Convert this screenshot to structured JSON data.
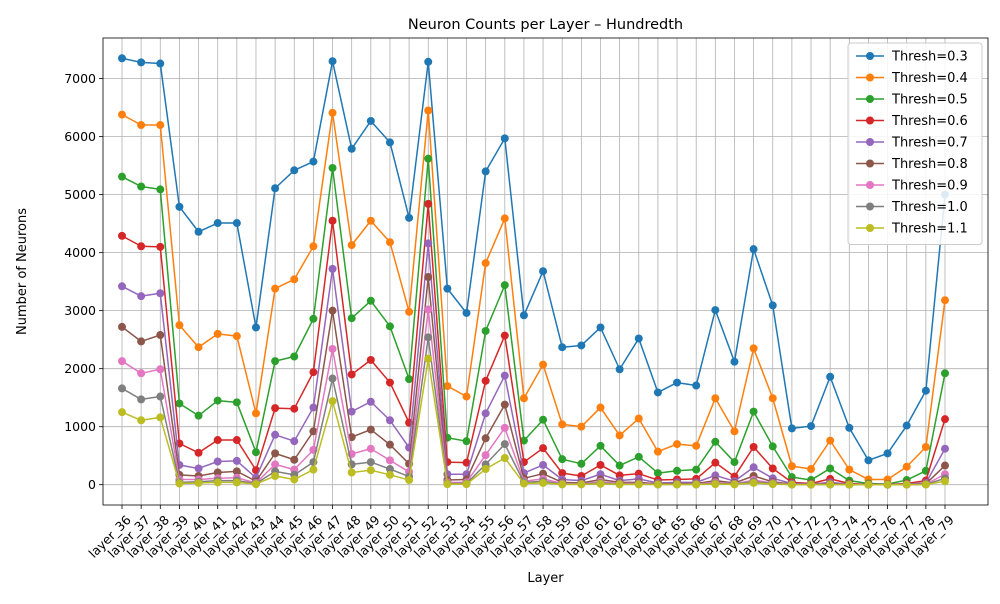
{
  "chart_data": {
    "type": "line",
    "title": "Neuron Counts per Layer – Hundredth",
    "xlabel": "Layer",
    "ylabel": "Number of Neurons",
    "ylim": [
      -350,
      7700
    ],
    "yticks": [
      0,
      1000,
      2000,
      3000,
      4000,
      5000,
      6000,
      7000
    ],
    "grid": true,
    "legend_position": "top-right",
    "categories": [
      "layer_36",
      "layer_37",
      "layer_38",
      "layer_39",
      "layer_40",
      "layer_41",
      "layer_42",
      "layer_43",
      "layer_44",
      "layer_45",
      "layer_46",
      "layer_47",
      "layer_48",
      "layer_49",
      "layer_50",
      "layer_51",
      "layer_52",
      "layer_53",
      "layer_54",
      "layer_55",
      "layer_56",
      "layer_57",
      "layer_58",
      "layer_59",
      "layer_60",
      "layer_61",
      "layer_62",
      "layer_63",
      "layer_64",
      "layer_65",
      "layer_66",
      "layer_67",
      "layer_68",
      "layer_69",
      "layer_70",
      "layer_71",
      "layer_72",
      "layer_73",
      "layer_74",
      "layer_75",
      "layer_76",
      "layer_77",
      "layer_78",
      "layer_79"
    ],
    "series": [
      {
        "name": "Thresh=0.3",
        "color": "#1f77b4",
        "values": [
          7350,
          7280,
          7260,
          4790,
          4360,
          4510,
          4510,
          2710,
          5110,
          5420,
          5570,
          7300,
          5790,
          6270,
          5900,
          4600,
          7290,
          3380,
          2960,
          5400,
          5970,
          2920,
          3680,
          2370,
          2400,
          2710,
          1990,
          2520,
          1590,
          1760,
          1710,
          3010,
          2120,
          4060,
          3090,
          970,
          1010,
          1860,
          980,
          420,
          540,
          1020,
          1620,
          5000
        ]
      },
      {
        "name": "Thresh=0.4",
        "color": "#ff7f0e",
        "values": [
          6380,
          6200,
          6200,
          2750,
          2370,
          2600,
          2560,
          1230,
          3380,
          3540,
          4110,
          6410,
          4130,
          4550,
          4180,
          2980,
          6450,
          1700,
          1520,
          3820,
          4590,
          1490,
          2070,
          1040,
          1000,
          1330,
          850,
          1140,
          570,
          700,
          670,
          1490,
          920,
          2350,
          1490,
          320,
          270,
          760,
          260,
          90,
          90,
          310,
          650,
          3180
        ]
      },
      {
        "name": "Thresh=0.5",
        "color": "#2ca02c",
        "values": [
          5310,
          5140,
          5090,
          1400,
          1190,
          1450,
          1420,
          560,
          2130,
          2210,
          2860,
          5460,
          2870,
          3170,
          2730,
          1820,
          5620,
          810,
          750,
          2650,
          3440,
          760,
          1120,
          440,
          360,
          670,
          330,
          480,
          200,
          240,
          260,
          740,
          390,
          1260,
          660,
          130,
          80,
          280,
          70,
          20,
          10,
          80,
          240,
          1920
        ]
      },
      {
        "name": "Thresh=0.6",
        "color": "#d62728",
        "values": [
          4290,
          4110,
          4100,
          710,
          550,
          770,
          770,
          250,
          1320,
          1310,
          1940,
          4550,
          1900,
          2150,
          1760,
          1070,
          4840,
          390,
          380,
          1790,
          2570,
          390,
          630,
          200,
          150,
          340,
          160,
          190,
          80,
          90,
          100,
          380,
          140,
          650,
          280,
          40,
          20,
          100,
          20,
          5,
          5,
          20,
          70,
          1130
        ]
      },
      {
        "name": "Thresh=0.7",
        "color": "#9467bd",
        "values": [
          3420,
          3250,
          3300,
          340,
          280,
          400,
          410,
          120,
          860,
          750,
          1330,
          3720,
          1260,
          1430,
          1110,
          640,
          4160,
          180,
          180,
          1230,
          1880,
          200,
          340,
          90,
          70,
          180,
          70,
          100,
          30,
          40,
          40,
          160,
          60,
          300,
          110,
          20,
          10,
          40,
          10,
          2,
          2,
          10,
          30,
          620
        ]
      },
      {
        "name": "Thresh=0.8",
        "color": "#8c564b",
        "values": [
          2720,
          2470,
          2580,
          170,
          150,
          210,
          230,
          60,
          540,
          430,
          920,
          3000,
          820,
          950,
          690,
          360,
          3580,
          80,
          90,
          800,
          1380,
          110,
          190,
          40,
          30,
          90,
          40,
          40,
          15,
          20,
          20,
          70,
          30,
          150,
          50,
          10,
          5,
          20,
          5,
          1,
          1,
          5,
          15,
          330
        ]
      },
      {
        "name": "Thresh=0.9",
        "color": "#e377c2",
        "values": [
          2130,
          1920,
          1990,
          90,
          90,
          110,
          120,
          30,
          350,
          260,
          600,
          2340,
          530,
          620,
          420,
          220,
          3020,
          40,
          40,
          510,
          980,
          60,
          100,
          20,
          15,
          50,
          20,
          20,
          8,
          10,
          10,
          40,
          15,
          80,
          30,
          5,
          3,
          10,
          3,
          1,
          1,
          3,
          8,
          180
        ]
      },
      {
        "name": "Thresh=1.0",
        "color": "#7f7f7f",
        "values": [
          1660,
          1470,
          1520,
          40,
          50,
          70,
          70,
          20,
          230,
          170,
          390,
          1830,
          350,
          390,
          270,
          140,
          2540,
          20,
          20,
          350,
          700,
          40,
          60,
          10,
          10,
          30,
          10,
          10,
          5,
          5,
          5,
          20,
          10,
          50,
          20,
          3,
          2,
          5,
          2,
          1,
          1,
          2,
          5,
          110
        ]
      },
      {
        "name": "Thresh=1.1",
        "color": "#bcbd22",
        "values": [
          1250,
          1110,
          1160,
          20,
          30,
          40,
          40,
          10,
          150,
          90,
          260,
          1440,
          210,
          250,
          170,
          80,
          2170,
          10,
          10,
          270,
          460,
          20,
          30,
          5,
          5,
          15,
          5,
          5,
          3,
          3,
          3,
          10,
          5,
          30,
          10,
          2,
          1,
          3,
          1,
          0,
          0,
          1,
          3,
          60
        ]
      }
    ]
  }
}
